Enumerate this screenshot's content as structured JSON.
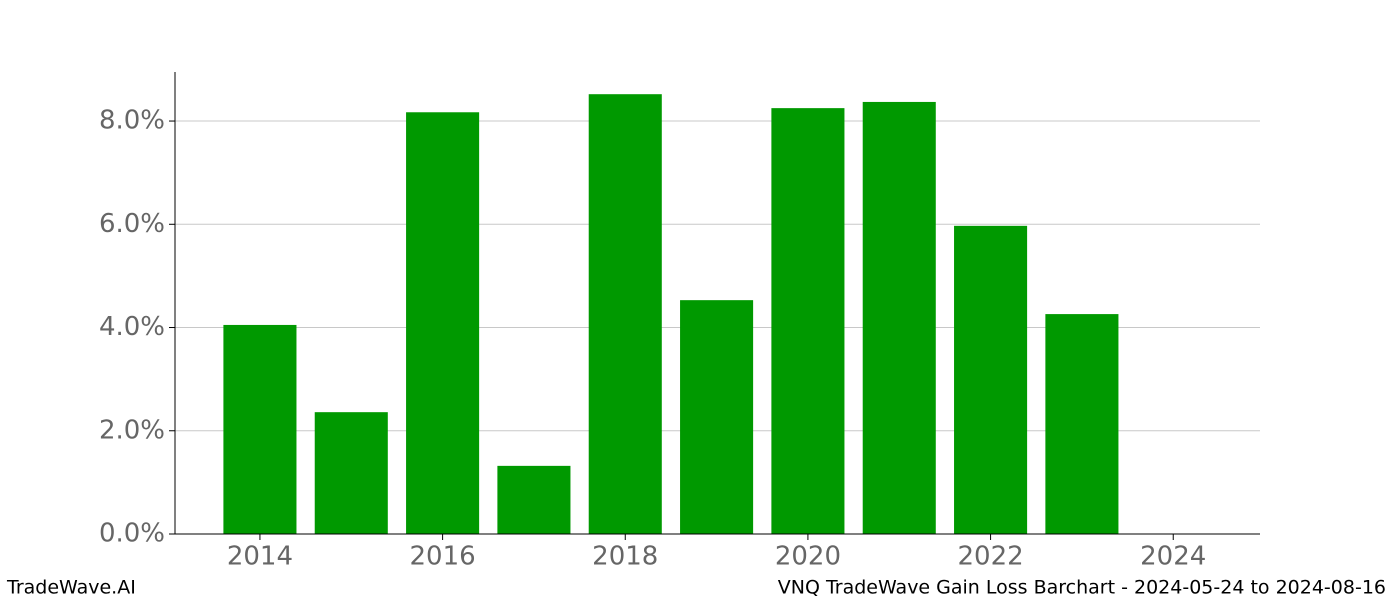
{
  "chart_data": {
    "type": "bar",
    "title": "VNQ TradeWave Gain Loss Barchart - 2024-05-24 to 2024-08-16",
    "brand": "TradeWave.AI",
    "x": [
      2014,
      2015,
      2016,
      2017,
      2018,
      2019,
      2020,
      2021,
      2022,
      2023
    ],
    "values": [
      4.05,
      2.36,
      8.17,
      1.32,
      8.52,
      4.53,
      8.25,
      8.37,
      5.97,
      4.26
    ],
    "color": "#009900",
    "bar_width": 0.8,
    "xlim": [
      2013.07,
      2024.95
    ],
    "xticks": [
      2014,
      2016,
      2018,
      2020,
      2022,
      2024
    ],
    "ylim": [
      0,
      8.95
    ],
    "yticks": [
      {
        "value": 0,
        "label": "0.0%"
      },
      {
        "value": 2,
        "label": "2.0%"
      },
      {
        "value": 4,
        "label": "4.0%"
      },
      {
        "value": 6,
        "label": "6.0%"
      },
      {
        "value": 8,
        "label": "8.0%"
      }
    ],
    "grid": true
  }
}
